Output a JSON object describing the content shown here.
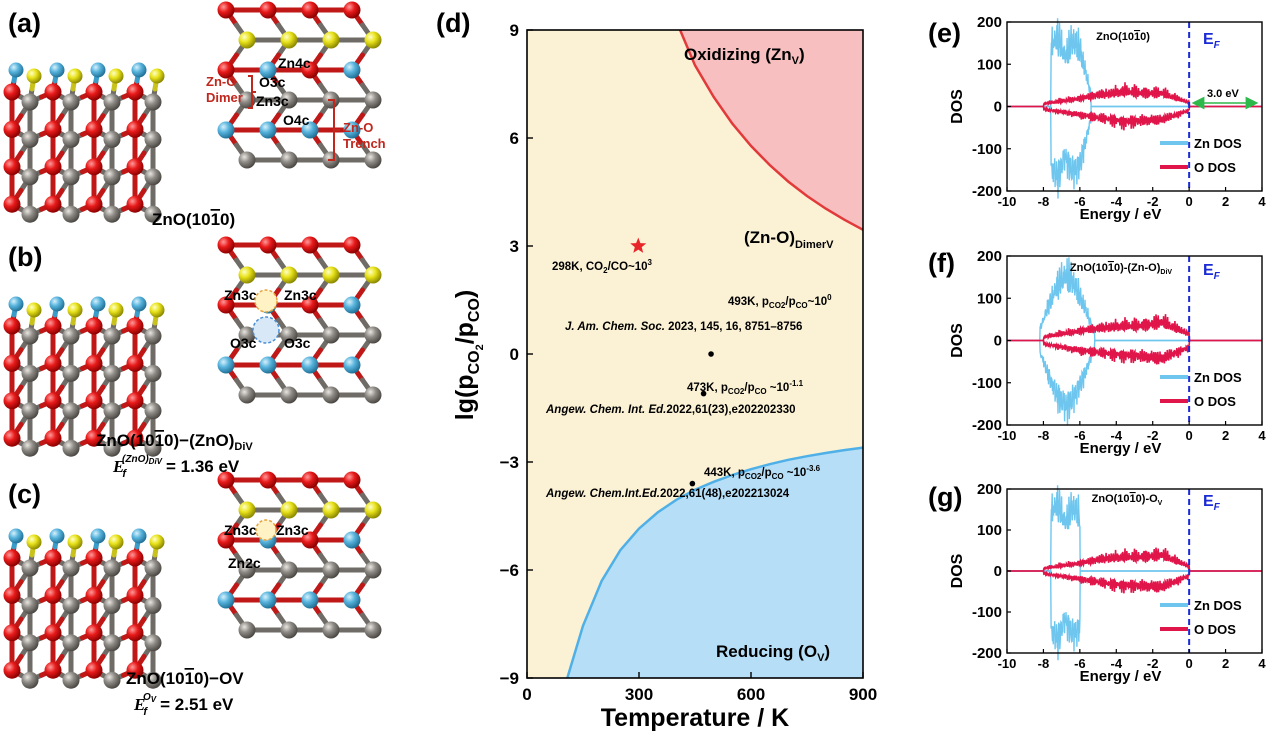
{
  "panels": {
    "a": {
      "label": "(a)",
      "caption_pre": "ZnO(10",
      "caption_bar": "1",
      "caption_post": "0)",
      "site_labels": [
        "Zn4c",
        "O3c",
        "Zn3c",
        "O4c"
      ],
      "dimer_label_1": "Zn-O",
      "dimer_label_2": "Dimer",
      "trench_label_1": "Zn-O",
      "trench_label_2": "Trench"
    },
    "b": {
      "label": "(b)",
      "caption_pre": "ZnO(10",
      "caption_bar": "1",
      "caption_post": "0)−(ZnO)",
      "caption_sub": "DiV",
      "energy_sym": "E",
      "energy_sub": "f",
      "energy_sup": "(ZnO)",
      "energy_supsub": "DiV",
      "energy_val": "= 1.36 eV",
      "site_labels": [
        "Zn3c",
        "Zn3c",
        "O3c",
        "O3c"
      ]
    },
    "c": {
      "label": "(c)",
      "caption_pre": "ZnO(10",
      "caption_bar": "1",
      "caption_post": "0)−OV",
      "energy_sym": "E",
      "energy_sub": "f",
      "energy_sup": "O",
      "energy_supsub": "V",
      "energy_val": "= 2.51 eV",
      "site_labels": [
        "Zn3c",
        "Zn3c",
        "Zn2c"
      ]
    },
    "d": {
      "label": "(d)",
      "xlabel": "Temperature / K",
      "ylabel_pre": "lg(p",
      "ylabel_sub1": "CO",
      "ylabel_sub1b": "2",
      "ylabel_mid": "/p",
      "ylabel_sub2": "CO",
      "ylabel_post": ")",
      "region_oxidizing": "Oxidizing (Zn",
      "region_oxidizing_sub": "V",
      "region_middle": "(Zn-O)",
      "region_middle_sub": "DimerV",
      "region_reducing": "Reducing (O",
      "region_reducing_sub": "V",
      "star_label": "298K, CO",
      "star_label_sub": "2",
      "star_label_post": "/CO~10",
      "star_label_sup": "3",
      "annotations": [
        {
          "cond": "493K, p",
          "sub1": "CO2",
          "mid": "/p",
          "sub2": "CO",
          "post": "~10",
          "sup": "0",
          "ref_journal": "J. Am. Chem. Soc.",
          "ref_rest": " 2023, 145, 16, 8751–8756"
        },
        {
          "cond": "473K, p",
          "sub1": "CO2",
          "mid": "/p",
          "sub2": "CO",
          "post": " ~10",
          "sup": "-1.1",
          "ref_journal": "Angew. Chem. Int. Ed.",
          "ref_rest": "2022,61(23),e202202330"
        },
        {
          "cond": "443K, p",
          "sub1": "CO2",
          "mid": "/p",
          "sub2": "CO",
          "post": " ~10",
          "sup": "-3.6",
          "ref_journal": "Angew. Chem.Int.Ed.",
          "ref_rest": "2022,61(48),e202213024"
        }
      ],
      "colors": {
        "oxidizing": "#f7bfc0",
        "middle": "#fbf2d5",
        "reducing": "#b6def6",
        "ox_line": "#e23a3a",
        "red_line": "#4fb0e8",
        "star": "#e8262a"
      }
    },
    "e": {
      "label": "(e)",
      "title_pre": "ZnO(10",
      "title_bar": "1",
      "title_post": "0)",
      "gap_label": "3.0 eV"
    },
    "f": {
      "label": "(f)",
      "title_pre": "ZnO(10",
      "title_bar": "1",
      "title_post": "0)-(Zn-O)",
      "title_sub": "DiV"
    },
    "g": {
      "label": "(g)",
      "title_pre": "ZnO(10",
      "title_bar": "1",
      "title_post": "0)-O",
      "title_sub": "V"
    }
  },
  "dos_common": {
    "ylabel": "DOS",
    "xlabel": "Energy / eV",
    "ef_label": "E",
    "ef_sub": "F",
    "legend_zn": "Zn DOS",
    "legend_o": "O DOS",
    "zn_color": "#6ec6ef",
    "o_color": "#e0154a",
    "ef_color": "#1a2bd6"
  },
  "chart_data": [
    {
      "type": "area",
      "panel": "(d)",
      "xlabel": "Temperature / K",
      "ylabel": "lg(pCO2/pCO)",
      "xlim": [
        0,
        900
      ],
      "ylim": [
        -9,
        9
      ],
      "xticks": [
        0,
        300,
        600,
        900
      ],
      "yticks": [
        -9,
        -6,
        -3,
        0,
        3,
        6,
        9
      ],
      "series": [
        {
          "name": "Oxidizing (ZnV)",
          "x": [
            410,
            450,
            500,
            550,
            600,
            650,
            700,
            750,
            800,
            850,
            900
          ],
          "y": [
            9.0,
            8.02,
            7.14,
            6.4,
            5.78,
            5.25,
            4.79,
            4.39,
            4.04,
            3.73,
            3.45
          ]
        },
        {
          "name": "Reducing (OV)",
          "x": [
            108,
            150,
            200,
            250,
            300,
            350,
            400,
            450,
            500,
            550,
            600,
            650,
            700,
            750,
            800,
            850,
            900
          ],
          "y": [
            -9.0,
            -7.55,
            -6.3,
            -5.45,
            -4.85,
            -4.4,
            -4.05,
            -3.77,
            -3.55,
            -3.36,
            -3.2,
            -3.06,
            -2.94,
            -2.84,
            -2.75,
            -2.67,
            -2.6
          ]
        }
      ],
      "points": [
        {
          "label": "298K, CO2/CO~10^3",
          "x": 298,
          "y": 3,
          "marker": "star"
        },
        {
          "label": "493K",
          "x": 493,
          "y": 0,
          "marker": "dot"
        },
        {
          "label": "473K",
          "x": 473,
          "y": -1.1,
          "marker": "dot"
        },
        {
          "label": "443K",
          "x": 443,
          "y": -3.6,
          "marker": "dot"
        }
      ]
    },
    {
      "type": "line",
      "panel": "(e)",
      "xlabel": "Energy / eV",
      "ylabel": "DOS",
      "xlim": [
        -10,
        4
      ],
      "ylim": [
        -200,
        200
      ],
      "xticks": [
        -10,
        -8,
        -6,
        -4,
        -2,
        0,
        2,
        4
      ],
      "yticks": [
        -200,
        -100,
        0,
        100,
        200
      ],
      "fermi_level": 0,
      "band_gap_eV": 3.0,
      "series": [
        {
          "name": "Zn DOS",
          "x": [
            -7.6,
            -7.2,
            -6.8,
            -6.4,
            -6.0,
            -5.4
          ],
          "y": [
            190,
            210,
            150,
            200,
            175,
            40
          ]
        },
        {
          "name": "O DOS",
          "x": [
            -8.0,
            -6.0,
            -5.0,
            -3.5,
            -1.5,
            0
          ],
          "y": [
            8,
            25,
            35,
            45,
            40,
            12
          ]
        }
      ]
    },
    {
      "type": "line",
      "panel": "(f)",
      "xlabel": "Energy / eV",
      "ylabel": "DOS",
      "xlim": [
        -10,
        4
      ],
      "ylim": [
        -200,
        200
      ],
      "xticks": [
        -10,
        -8,
        -6,
        -4,
        -2,
        0,
        2,
        4
      ],
      "yticks": [
        -200,
        -100,
        0,
        100,
        200
      ],
      "fermi_level": 0,
      "series": [
        {
          "name": "Zn DOS",
          "x": [
            -8.2,
            -7.4,
            -6.8,
            -6.4,
            -5.8,
            -5.2
          ],
          "y": [
            35,
            150,
            200,
            180,
            110,
            25
          ]
        },
        {
          "name": "O DOS",
          "x": [
            -8.0,
            -6.0,
            -4.5,
            -3.0,
            -1.5,
            0
          ],
          "y": [
            10,
            30,
            40,
            45,
            55,
            20
          ]
        }
      ]
    },
    {
      "type": "line",
      "panel": "(g)",
      "xlabel": "Energy / eV",
      "ylabel": "DOS",
      "xlim": [
        -10,
        4
      ],
      "ylim": [
        -200,
        200
      ],
      "xticks": [
        -10,
        -8,
        -6,
        -4,
        -2,
        0,
        2,
        4
      ],
      "yticks": [
        -200,
        -100,
        0,
        100,
        200
      ],
      "fermi_level": 0,
      "series": [
        {
          "name": "Zn DOS",
          "x": [
            -7.6,
            -7.2,
            -6.8,
            -6.4,
            -6.0
          ],
          "y": [
            190,
            210,
            150,
            200,
            175
          ]
        },
        {
          "name": "O DOS",
          "x": [
            -8.0,
            -6.0,
            -4.5,
            -3.0,
            -1.5,
            0
          ],
          "y": [
            8,
            25,
            40,
            45,
            50,
            15
          ]
        }
      ]
    }
  ]
}
